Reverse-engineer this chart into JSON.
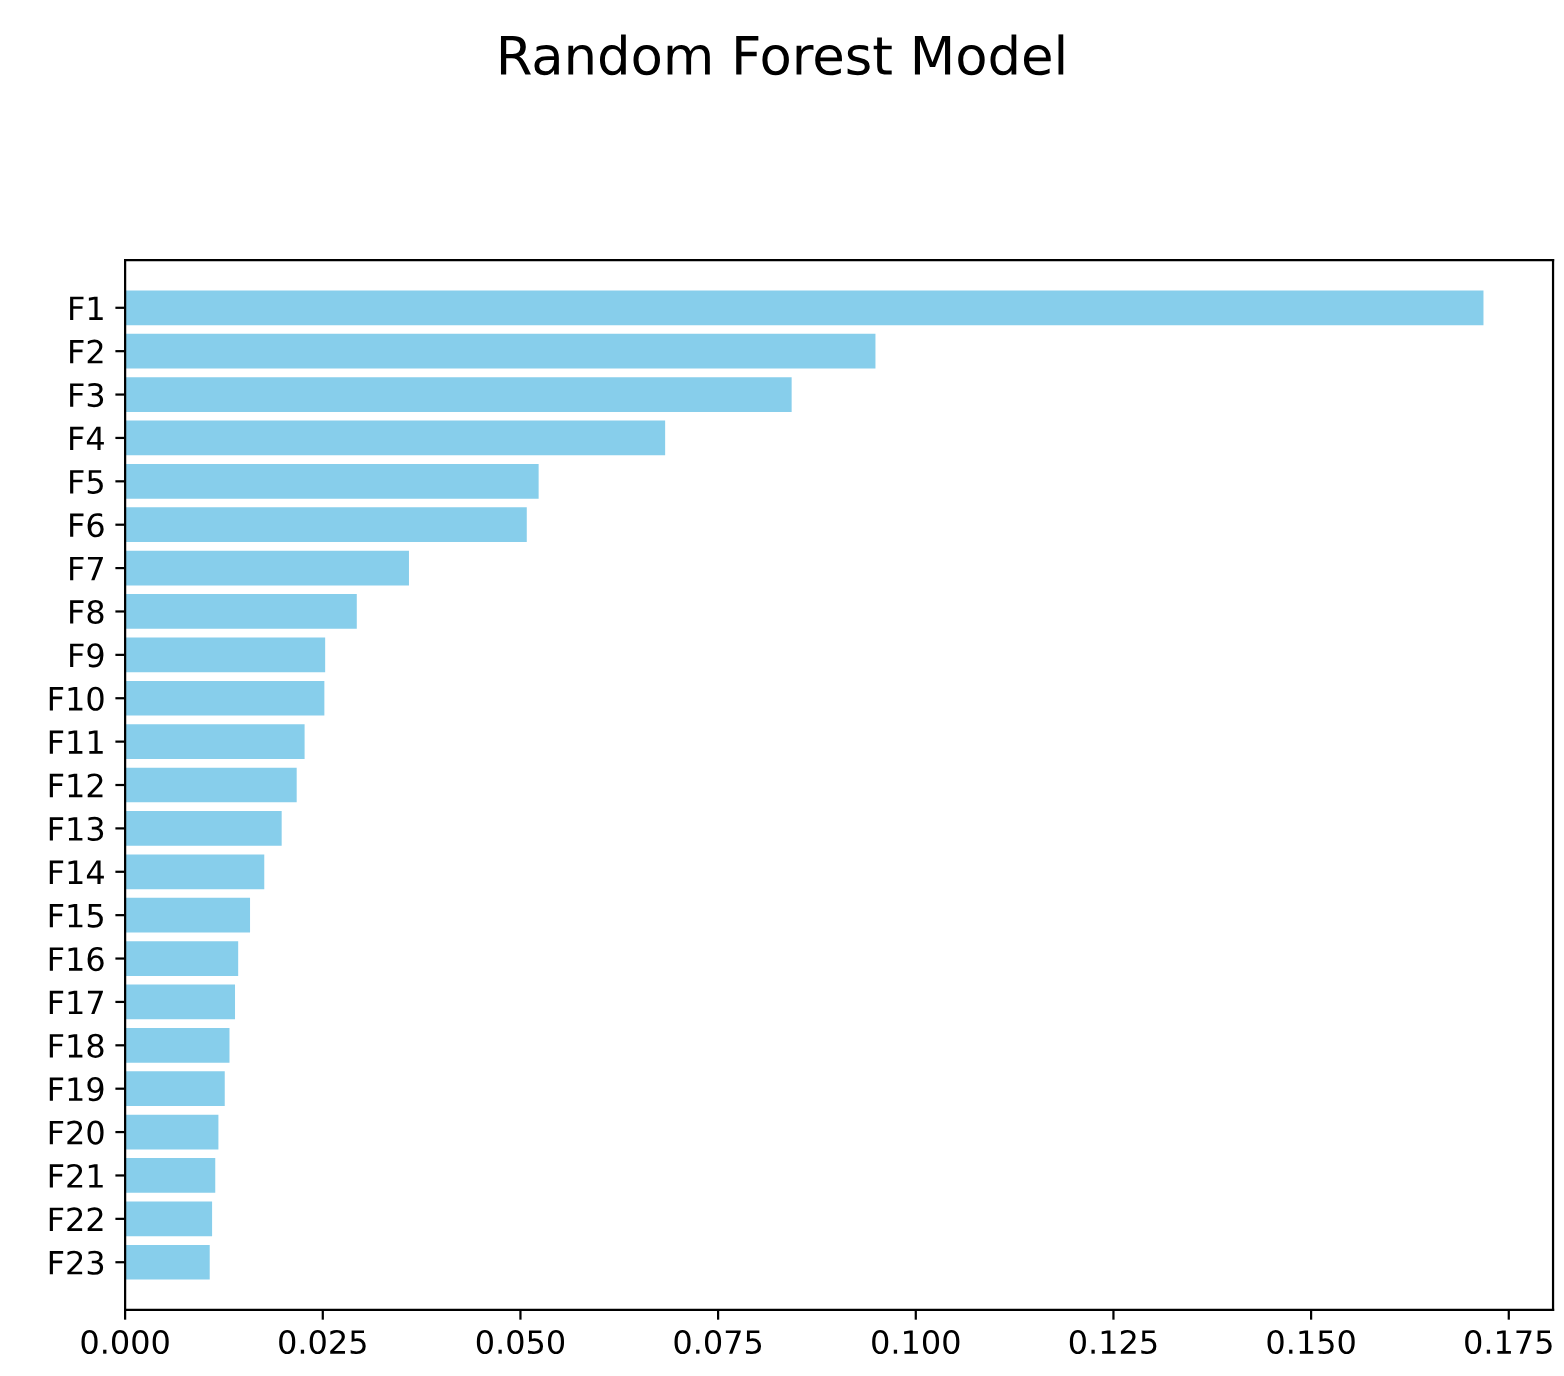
{
  "chart_data": {
    "type": "bar",
    "orientation": "horizontal",
    "title": "Random Forest Model",
    "categories": [
      "F1",
      "F2",
      "F3",
      "F4",
      "F5",
      "F6",
      "F7",
      "F8",
      "F9",
      "F10",
      "F11",
      "F12",
      "F13",
      "F14",
      "F15",
      "F16",
      "F17",
      "F18",
      "F19",
      "F20",
      "F21",
      "F22",
      "F23"
    ],
    "values": [
      0.1718,
      0.0949,
      0.0843,
      0.0683,
      0.0523,
      0.0508,
      0.0359,
      0.0293,
      0.0253,
      0.0252,
      0.0227,
      0.0217,
      0.0198,
      0.0176,
      0.0158,
      0.0143,
      0.0139,
      0.0132,
      0.0126,
      0.0118,
      0.0114,
      0.011,
      0.0107
    ],
    "color": "#87ceeb",
    "xlim": [
      0,
      0.1806
    ],
    "xticks": [
      {
        "value": 0,
        "label": "0.000"
      },
      {
        "value": 0.025,
        "label": "0.025"
      },
      {
        "value": 0.05,
        "label": "0.050"
      },
      {
        "value": 0.075,
        "label": "0.075"
      },
      {
        "value": 0.1,
        "label": "0.100"
      },
      {
        "value": 0.125,
        "label": "0.125"
      },
      {
        "value": 0.15,
        "label": "0.150"
      },
      {
        "value": 0.175,
        "label": "0.175"
      }
    ],
    "grid": false,
    "legend": false
  }
}
